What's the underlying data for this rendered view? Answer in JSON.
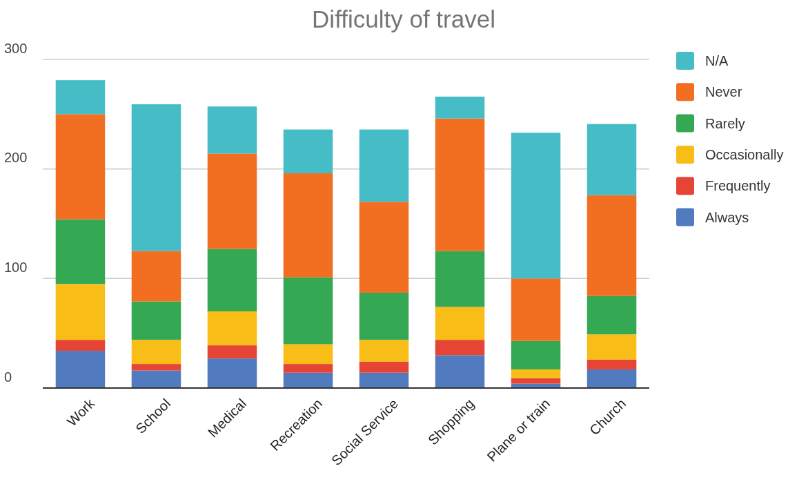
{
  "chart_data": {
    "type": "bar",
    "title": "Difficulty of travel",
    "stacked": true,
    "grid": "y",
    "legend": "right",
    "categories": [
      "Work",
      "School",
      "Medical",
      "Recreation",
      "Social Service",
      "Shopping",
      "Plane or train",
      "Church"
    ],
    "ylim": [
      0,
      300
    ],
    "yticks": [
      0,
      100,
      200,
      300
    ],
    "series": [
      {
        "name": "Always",
        "color": "#527bbf",
        "values": [
          34,
          16,
          27,
          14,
          14,
          30,
          4,
          17
        ]
      },
      {
        "name": "Frequently",
        "color": "#e64536",
        "values": [
          10,
          6,
          12,
          8,
          10,
          14,
          5,
          9
        ]
      },
      {
        "name": "Occasionally",
        "color": "#f8bd16",
        "values": [
          51,
          22,
          31,
          18,
          20,
          30,
          8,
          23
        ]
      },
      {
        "name": "Rarely",
        "color": "#34a853",
        "values": [
          59,
          35,
          57,
          61,
          43,
          51,
          26,
          35
        ]
      },
      {
        "name": "Never",
        "color": "#f26f21",
        "values": [
          96,
          46,
          87,
          95,
          83,
          121,
          57,
          92
        ]
      },
      {
        "name": "N/A",
        "color": "#46bdc6",
        "values": [
          31,
          134,
          43,
          40,
          66,
          20,
          133,
          65
        ]
      }
    ]
  }
}
